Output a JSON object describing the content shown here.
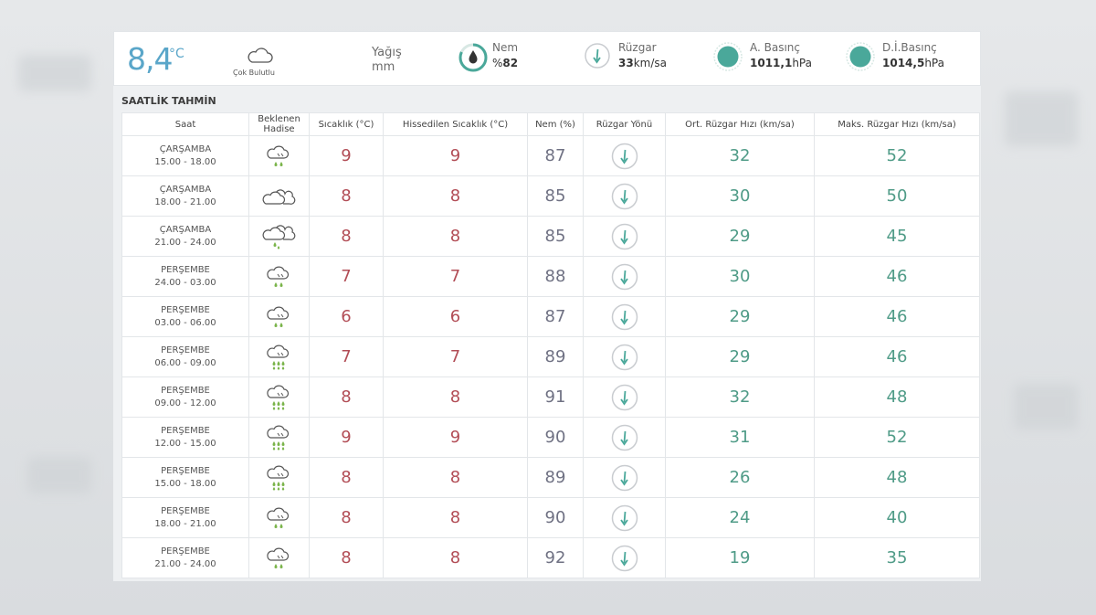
{
  "current": {
    "temperature": "8,4",
    "temperature_unit": "°C",
    "condition": "Çok Bulutlu",
    "condition_icon": "cloud-icon",
    "rain_label": "Yağış",
    "rain_unit": "mm",
    "humidity_label": "Nem",
    "humidity_prefix": "%",
    "humidity_value": "82",
    "humidity_percent": 82,
    "wind_label": "Rüzgar",
    "wind_value": "33",
    "wind_unit": "km/sa",
    "pressure_label": "A. Basınç",
    "pressure_value": "1011,1",
    "pressure_unit": "hPa",
    "sea_pressure_label": "D.İ.Basınç",
    "sea_pressure_value": "1014,5",
    "sea_pressure_unit": "hPa"
  },
  "forecast": {
    "title": "SAATLİK TAHMİN",
    "headers": {
      "time": "Saat",
      "event_line1": "Beklenen",
      "event_line2": "Hadise",
      "temp": "Sıcaklık (°C)",
      "feels": "Hissedilen Sıcaklık (°C)",
      "humidity": "Nem (%)",
      "wind_dir": "Rüzgar Yönü",
      "avg_wind": "Ort. Rüzgar Hızı (km/sa)",
      "max_wind": "Maks. Rüzgar Hızı (km/sa)"
    },
    "rows": [
      {
        "day": "ÇARŞAMBA",
        "time": "15.00 - 18.00",
        "icon": "cloud-rain-icon",
        "temp": "9",
        "feels": "9",
        "humidity": "87",
        "avg_wind": "32",
        "max_wind": "52"
      },
      {
        "day": "ÇARŞAMBA",
        "time": "18.00 - 21.00",
        "icon": "clouds-icon",
        "temp": "8",
        "feels": "8",
        "humidity": "85",
        "avg_wind": "30",
        "max_wind": "50"
      },
      {
        "day": "ÇARŞAMBA",
        "time": "21.00 - 24.00",
        "icon": "clouds-rain-icon",
        "temp": "8",
        "feels": "8",
        "humidity": "85",
        "avg_wind": "29",
        "max_wind": "45"
      },
      {
        "day": "PERŞEMBE",
        "time": "24.00 - 03.00",
        "icon": "cloud-rain-icon",
        "temp": "7",
        "feels": "7",
        "humidity": "88",
        "avg_wind": "30",
        "max_wind": "46"
      },
      {
        "day": "PERŞEMBE",
        "time": "03.00 - 06.00",
        "icon": "cloud-rain-icon",
        "temp": "6",
        "feels": "6",
        "humidity": "87",
        "avg_wind": "29",
        "max_wind": "46"
      },
      {
        "day": "PERŞEMBE",
        "time": "06.00 - 09.00",
        "icon": "cloud-heavy-rain-icon",
        "temp": "7",
        "feels": "7",
        "humidity": "89",
        "avg_wind": "29",
        "max_wind": "46"
      },
      {
        "day": "PERŞEMBE",
        "time": "09.00 - 12.00",
        "icon": "cloud-heavy-rain-icon",
        "temp": "8",
        "feels": "8",
        "humidity": "91",
        "avg_wind": "32",
        "max_wind": "48"
      },
      {
        "day": "PERŞEMBE",
        "time": "12.00 - 15.00",
        "icon": "cloud-heavy-rain-icon",
        "temp": "9",
        "feels": "9",
        "humidity": "90",
        "avg_wind": "31",
        "max_wind": "52"
      },
      {
        "day": "PERŞEMBE",
        "time": "15.00 - 18.00",
        "icon": "cloud-heavy-rain-icon",
        "temp": "8",
        "feels": "8",
        "humidity": "89",
        "avg_wind": "26",
        "max_wind": "48"
      },
      {
        "day": "PERŞEMBE",
        "time": "18.00 - 21.00",
        "icon": "cloud-rain-icon",
        "temp": "8",
        "feels": "8",
        "humidity": "90",
        "avg_wind": "24",
        "max_wind": "40"
      },
      {
        "day": "PERŞEMBE",
        "time": "21.00 - 24.00",
        "icon": "cloud-rain-icon",
        "temp": "8",
        "feels": "8",
        "humidity": "92",
        "avg_wind": "19",
        "max_wind": "35"
      }
    ]
  },
  "colors": {
    "accent_blue": "#5aa6c9",
    "teal": "#4aa89a",
    "temp_red": "#b24d56",
    "humidity_gray": "#6f7183",
    "wind_green": "#4f9b87",
    "rain_green": "#7ab44a"
  }
}
